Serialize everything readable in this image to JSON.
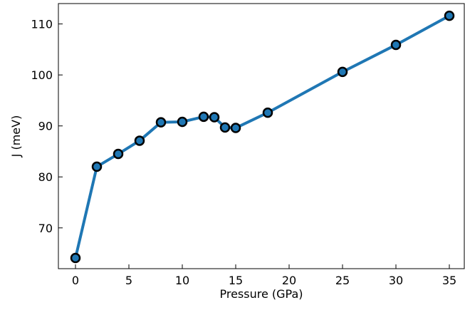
{
  "chart_data": {
    "type": "line",
    "title": "",
    "xlabel": "Pressure (GPa)",
    "ylabel": "J (meV)",
    "xlim": [
      -1.6,
      36.4
    ],
    "ylim": [
      62,
      114
    ],
    "xticks": [
      0,
      5,
      10,
      15,
      20,
      25,
      30,
      35
    ],
    "yticks": [
      70,
      80,
      90,
      100,
      110
    ],
    "tick_direction": "in",
    "grid": false,
    "legend": "none",
    "series": [
      {
        "color": "#1f77b4",
        "marker": "circle",
        "marker_edge_color": "#000000",
        "points": [
          {
            "x": 0,
            "y": 64.1
          },
          {
            "x": 2,
            "y": 82.0
          },
          {
            "x": 4,
            "y": 84.5
          },
          {
            "x": 6,
            "y": 87.1
          },
          {
            "x": 8,
            "y": 90.7
          },
          {
            "x": 10,
            "y": 90.8
          },
          {
            "x": 12,
            "y": 91.8
          },
          {
            "x": 13,
            "y": 91.7
          },
          {
            "x": 14,
            "y": 89.7
          },
          {
            "x": 15,
            "y": 89.6
          },
          {
            "x": 18,
            "y": 92.6
          },
          {
            "x": 25,
            "y": 100.6
          },
          {
            "x": 30,
            "y": 105.9
          },
          {
            "x": 35,
            "y": 111.6
          }
        ]
      }
    ]
  }
}
